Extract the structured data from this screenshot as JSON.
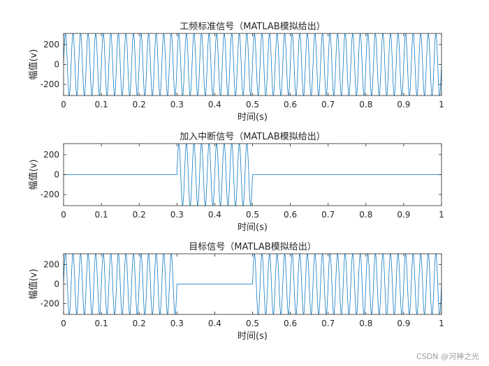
{
  "watermark": "CSDN @河神之光",
  "chart_data": [
    {
      "type": "line",
      "title": "工频标准信号（MATLAB模拟给出）",
      "xlabel": "时间(s)",
      "ylabel": "幅值(v)",
      "xlim": [
        0,
        1
      ],
      "ylim": [
        -311,
        311
      ],
      "xticks": [
        0,
        0.1,
        0.2,
        0.3,
        0.4,
        0.5,
        0.6,
        0.7,
        0.8,
        0.9,
        1
      ],
      "xtick_labels": [
        "0",
        "0.1",
        "0.2",
        "0.3",
        "0.4",
        "0.5",
        "0.6",
        "0.7",
        "0.8",
        "0.9",
        "1"
      ],
      "yticks": [
        -200,
        0,
        200
      ],
      "ytick_labels": [
        "-200",
        "0",
        "200"
      ],
      "grid": false,
      "line_color": "#0072BD",
      "series": [
        {
          "amplitude": 311,
          "frequency_hz": 50,
          "segments": [
            [
              0,
              1,
              "sine"
            ]
          ]
        }
      ]
    },
    {
      "type": "line",
      "title": "加入中断信号（MATLAB模拟给出）",
      "xlabel": "时间(s)",
      "ylabel": "幅值(v)",
      "xlim": [
        0,
        1
      ],
      "ylim": [
        -311,
        311
      ],
      "xticks": [
        0,
        0.1,
        0.2,
        0.3,
        0.4,
        0.5,
        0.6,
        0.7,
        0.8,
        0.9,
        1
      ],
      "xtick_labels": [
        "0",
        "0.1",
        "0.2",
        "0.3",
        "0.4",
        "0.5",
        "0.6",
        "0.7",
        "0.8",
        "0.9",
        "1"
      ],
      "yticks": [
        -200,
        0,
        200
      ],
      "ytick_labels": [
        "-200",
        "0",
        "200"
      ],
      "grid": false,
      "line_color": "#0072BD",
      "series": [
        {
          "amplitude": 311,
          "frequency_hz": 50,
          "segments": [
            [
              0,
              0.3,
              "zero"
            ],
            [
              0.3,
              0.5,
              "sine"
            ],
            [
              0.5,
              1,
              "zero"
            ]
          ]
        }
      ]
    },
    {
      "type": "line",
      "title": "目标信号（MATLAB模拟给出）",
      "xlabel": "时间(s)",
      "ylabel": "幅值(v)",
      "xlim": [
        0,
        1
      ],
      "ylim": [
        -311,
        311
      ],
      "xticks": [
        0,
        0.1,
        0.2,
        0.3,
        0.4,
        0.5,
        0.6,
        0.7,
        0.8,
        0.9,
        1
      ],
      "xtick_labels": [
        "0",
        "0.1",
        "0.2",
        "0.3",
        "0.4",
        "0.5",
        "0.6",
        "0.7",
        "0.8",
        "0.9",
        "1"
      ],
      "yticks": [
        -200,
        0,
        200
      ],
      "ytick_labels": [
        "-200",
        "0",
        "200"
      ],
      "grid": false,
      "line_color": "#0072BD",
      "series": [
        {
          "amplitude": 311,
          "frequency_hz": 50,
          "segments": [
            [
              0,
              0.3,
              "sine"
            ],
            [
              0.3,
              0.5,
              "zero"
            ],
            [
              0.5,
              1,
              "sine"
            ]
          ]
        }
      ]
    }
  ]
}
